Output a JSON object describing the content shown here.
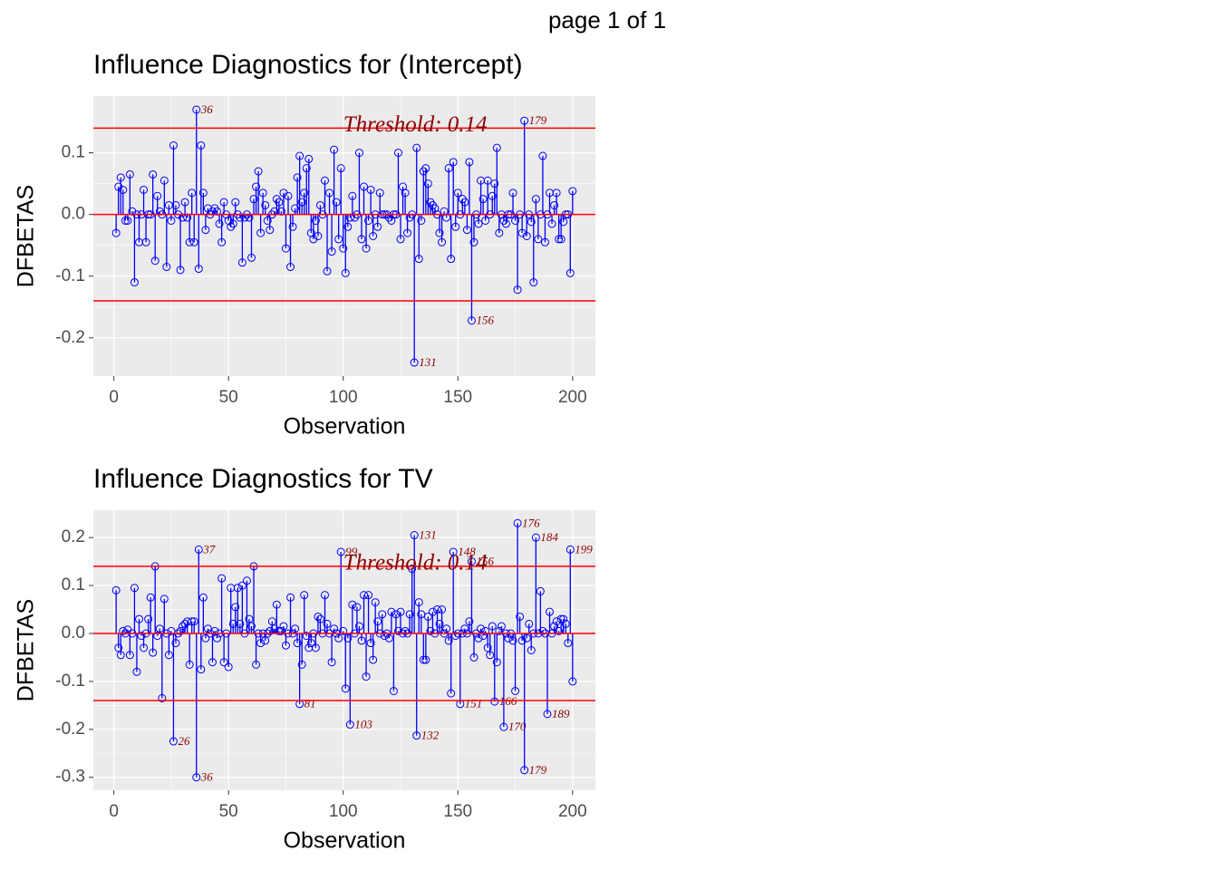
{
  "header": "page 1 of 1",
  "chart_data": [
    {
      "type": "lollipop",
      "title": "Influence Diagnostics for (Intercept)",
      "xlabel": "Observation",
      "ylabel": "DFBETAS",
      "threshold": 0.14,
      "threshold_label": "Threshold: 0.14",
      "color": "#0000ff",
      "line_color": "#ff0000",
      "label_color": "#8b0000",
      "grid": true,
      "xlim": [
        -8.95,
        209.95
      ],
      "xticks": [
        0,
        50,
        100,
        150,
        200
      ],
      "ylim": [
        -0.262,
        0.192
      ],
      "yticks": [
        -0.2,
        -0.1,
        {
          "value": 0,
          "label": "0.0"
        },
        0.1
      ],
      "x": [
        1,
        2,
        3,
        4,
        5,
        6,
        7,
        8,
        9,
        10,
        11,
        12,
        13,
        14,
        15,
        16,
        17,
        18,
        19,
        20,
        21,
        22,
        23,
        24,
        25,
        26,
        27,
        28,
        29,
        30,
        31,
        32,
        33,
        34,
        35,
        36,
        37,
        38,
        39,
        40,
        41,
        42,
        43,
        44,
        45,
        46,
        47,
        48,
        49,
        50,
        51,
        52,
        53,
        54,
        55,
        56,
        57,
        58,
        59,
        60,
        61,
        62,
        63,
        64,
        65,
        66,
        67,
        68,
        69,
        70,
        71,
        72,
        73,
        74,
        75,
        76,
        77,
        78,
        79,
        80,
        81,
        82,
        83,
        84,
        85,
        86,
        87,
        88,
        89,
        90,
        91,
        92,
        93,
        94,
        95,
        96,
        97,
        98,
        99,
        100,
        101,
        102,
        103,
        104,
        105,
        106,
        107,
        108,
        109,
        110,
        111,
        112,
        113,
        114,
        115,
        116,
        117,
        118,
        119,
        120,
        121,
        122,
        123,
        124,
        125,
        126,
        127,
        128,
        129,
        130,
        131,
        132,
        133,
        134,
        135,
        136,
        137,
        138,
        139,
        140,
        141,
        142,
        143,
        144,
        145,
        146,
        147,
        148,
        149,
        150,
        151,
        152,
        153,
        154,
        155,
        156,
        157,
        158,
        159,
        160,
        161,
        162,
        163,
        164,
        165,
        166,
        167,
        168,
        169,
        170,
        171,
        172,
        173,
        174,
        175,
        176,
        177,
        178,
        179,
        180,
        181,
        182,
        183,
        184,
        185,
        186,
        187,
        188,
        189,
        190,
        191,
        192,
        193,
        194,
        195,
        196,
        197,
        198,
        199,
        200
      ],
      "values": [
        -0.03,
        0.045,
        0.06,
        0.04,
        -0.01,
        -0.01,
        0.065,
        0.005,
        -0.11,
        0.0,
        -0.045,
        0.0,
        0.04,
        -0.045,
        0.0,
        0.0,
        0.065,
        -0.075,
        0.03,
        0.005,
        0.0,
        0.055,
        -0.085,
        0.015,
        -0.01,
        0.112,
        0.015,
        0.0,
        -0.09,
        -0.005,
        0.02,
        -0.005,
        -0.045,
        0.035,
        -0.045,
        0.17,
        -0.088,
        0.112,
        0.035,
        -0.025,
        0.01,
        0.0,
        0.005,
        0.01,
        0.005,
        -0.015,
        -0.045,
        0.02,
        0.0,
        -0.01,
        -0.02,
        -0.015,
        0.02,
        0.0,
        -0.005,
        -0.078,
        -0.005,
        0.0,
        -0.005,
        -0.07,
        0.025,
        0.045,
        0.07,
        -0.03,
        0.035,
        0.015,
        -0.01,
        -0.025,
        0.0,
        0.005,
        0.025,
        0.02,
        0.005,
        0.035,
        -0.055,
        0.03,
        -0.085,
        -0.02,
        0.01,
        0.06,
        0.095,
        0.02,
        0.035,
        0.075,
        0.09,
        -0.03,
        -0.04,
        -0.01,
        -0.035,
        0.015,
        0.0,
        0.055,
        -0.092,
        0.035,
        -0.06,
        0.105,
        0.02,
        -0.04,
        0.075,
        -0.055,
        -0.095,
        -0.02,
        -0.005,
        0.03,
        -0.005,
        0.0,
        0.1,
        -0.04,
        0.045,
        -0.055,
        -0.01,
        0.04,
        -0.035,
        0.0,
        -0.02,
        0.035,
        0.0,
        0.0,
        0.0,
        -0.005,
        -0.01,
        0.0,
        0.0,
        0.1,
        -0.04,
        0.045,
        0.035,
        -0.03,
        -0.005,
        0.0,
        -0.24,
        0.108,
        -0.072,
        -0.01,
        0.07,
        0.075,
        0.05,
        0.02,
        0.015,
        0.01,
        0.0,
        -0.03,
        -0.045,
        0.005,
        -0.005,
        0.075,
        -0.072,
        0.085,
        -0.02,
        0.035,
        0.0,
        0.025,
        0.02,
        -0.025,
        0.085,
        -0.172,
        -0.045,
        0.0,
        -0.015,
        0.055,
        0.025,
        -0.01,
        0.055,
        0.0,
        0.03,
        0.05,
        0.108,
        -0.03,
        0.0,
        -0.01,
        -0.015,
        0.0,
        0.0,
        0.035,
        -0.01,
        -0.122,
        0.0,
        -0.03,
        0.152,
        -0.035,
        0.0,
        -0.012,
        -0.11,
        0.025,
        -0.04,
        0.0,
        0.095,
        -0.045,
        0.0,
        0.035,
        -0.015,
        0.015,
        0.035,
        -0.04,
        -0.04,
        -0.012,
        0.0,
        0.0,
        -0.095,
        0.038
      ]
    },
    {
      "type": "lollipop",
      "title": "Influence Diagnostics for TV",
      "xlabel": "Observation",
      "ylabel": "DFBETAS",
      "threshold": 0.14,
      "threshold_label": "Threshold: 0.14",
      "color": "#0000ff",
      "line_color": "#ff0000",
      "label_color": "#8b0000",
      "grid": true,
      "xlim": [
        -8.95,
        209.95
      ],
      "xticks": [
        0,
        50,
        100,
        150,
        200
      ],
      "ylim": [
        -0.327,
        0.257
      ],
      "yticks": [
        -0.3,
        -0.2,
        -0.1,
        {
          "value": 0,
          "label": "0.0"
        },
        0.1,
        0.2
      ],
      "x": [
        1,
        2,
        3,
        4,
        5,
        6,
        7,
        8,
        9,
        10,
        11,
        12,
        13,
        14,
        15,
        16,
        17,
        18,
        19,
        20,
        21,
        22,
        23,
        24,
        25,
        26,
        27,
        28,
        29,
        30,
        31,
        32,
        33,
        34,
        35,
        36,
        37,
        38,
        39,
        40,
        41,
        42,
        43,
        44,
        45,
        46,
        47,
        48,
        49,
        50,
        51,
        52,
        53,
        54,
        55,
        56,
        57,
        58,
        59,
        60,
        61,
        62,
        63,
        64,
        65,
        66,
        67,
        68,
        69,
        70,
        71,
        72,
        73,
        74,
        75,
        76,
        77,
        78,
        79,
        80,
        81,
        82,
        83,
        84,
        85,
        86,
        87,
        88,
        89,
        90,
        91,
        92,
        93,
        94,
        95,
        96,
        97,
        98,
        99,
        100,
        101,
        102,
        103,
        104,
        105,
        106,
        107,
        108,
        109,
        110,
        111,
        112,
        113,
        114,
        115,
        116,
        117,
        118,
        119,
        120,
        121,
        122,
        123,
        124,
        125,
        126,
        127,
        128,
        129,
        130,
        131,
        132,
        133,
        134,
        135,
        136,
        137,
        138,
        139,
        140,
        141,
        142,
        143,
        144,
        145,
        146,
        147,
        148,
        149,
        150,
        151,
        152,
        153,
        154,
        155,
        156,
        157,
        158,
        159,
        160,
        161,
        162,
        163,
        164,
        165,
        166,
        167,
        168,
        169,
        170,
        171,
        172,
        173,
        174,
        175,
        176,
        177,
        178,
        179,
        180,
        181,
        182,
        183,
        184,
        185,
        186,
        187,
        188,
        189,
        190,
        191,
        192,
        193,
        194,
        195,
        196,
        197,
        198,
        199,
        200
      ],
      "values": [
        0.09,
        -0.03,
        -0.045,
        0.005,
        0.0,
        0.008,
        -0.045,
        0.0,
        0.095,
        -0.08,
        0.03,
        -0.005,
        -0.03,
        0.0,
        0.03,
        0.075,
        -0.04,
        0.14,
        -0.005,
        0.01,
        -0.135,
        0.072,
        0.0,
        -0.045,
        0.005,
        -0.225,
        -0.02,
        0.0,
        0.005,
        0.015,
        0.02,
        0.025,
        -0.065,
        0.025,
        0.025,
        -0.3,
        0.175,
        -0.075,
        0.075,
        -0.01,
        0.01,
        0.0,
        -0.06,
        0.005,
        -0.01,
        0.0,
        0.115,
        -0.06,
        0.0,
        -0.07,
        0.095,
        0.02,
        0.055,
        0.095,
        0.02,
        0.1,
        0.0,
        0.11,
        0.03,
        0.015,
        0.14,
        -0.065,
        0.0,
        -0.02,
        0.0,
        -0.015,
        0.0,
        0.005,
        0.025,
        0.01,
        0.06,
        0.005,
        0.005,
        0.015,
        -0.025,
        0.0,
        0.075,
        0.0,
        0.01,
        -0.02,
        -0.147,
        -0.065,
        0.08,
        -0.005,
        -0.03,
        -0.02,
        0.0,
        -0.03,
        0.035,
        0.03,
        0.0,
        0.08,
        0.02,
        0.0,
        -0.06,
        0.01,
        0.0,
        -0.01,
        0.17,
        0.005,
        -0.115,
        -0.01,
        -0.19,
        0.06,
        0.0,
        0.055,
        0.015,
        -0.015,
        0.08,
        -0.09,
        0.08,
        -0.02,
        -0.055,
        0.065,
        0.025,
        0.0,
        0.04,
        -0.005,
        0.0,
        -0.01,
        0.045,
        -0.12,
        0.04,
        0.005,
        0.045,
        0.0,
        0.005,
        0.0,
        0.04,
        0.135,
        0.205,
        -0.213,
        0.065,
        0.04,
        -0.055,
        -0.055,
        0.035,
        0.005,
        0.045,
        0.0,
        0.05,
        0.02,
        0.05,
        0.0,
        0.01,
        -0.015,
        -0.125,
        0.17,
        -0.005,
        0.0,
        -0.147,
        0.0,
        0.01,
        0.0,
        0.025,
        0.15,
        -0.05,
        0.0,
        -0.01,
        0.01,
        -0.005,
        0.005,
        -0.03,
        -0.045,
        0.015,
        -0.142,
        -0.06,
        0.005,
        0.015,
        -0.195,
        0.0,
        -0.01,
        0.0,
        -0.015,
        -0.12,
        0.23,
        0.035,
        -0.015,
        -0.285,
        -0.01,
        0.02,
        -0.035,
        0.0,
        0.2,
        0.0,
        0.088,
        0.005,
        0.0,
        -0.168,
        0.045,
        0.0,
        0.015,
        0.025,
        0.005,
        0.03,
        0.03,
        0.02,
        -0.02,
        0.175,
        -0.1
      ]
    }
  ]
}
